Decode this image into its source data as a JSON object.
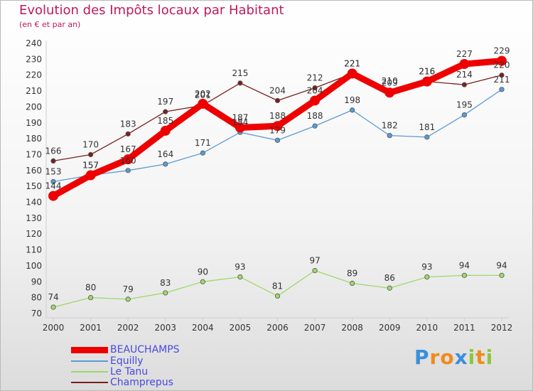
{
  "title": "Evolution des Impôts locaux par Habitant",
  "subtitle": "(en € et par an)",
  "logo": {
    "text": "Proxiti",
    "letters": [
      "P",
      "r",
      "o",
      "x",
      "i",
      "t",
      "i"
    ],
    "colors": [
      "#3a8fd9",
      "#f08a1c",
      "#f08a1c",
      "#3a8fd9",
      "#8cc63f",
      "#f08a1c",
      "#8cc63f"
    ]
  },
  "chart_data": {
    "type": "line",
    "title": "Evolution des Impôts locaux par Habitant",
    "subtitle": "(en € et par an)",
    "xlabel": "",
    "ylabel": "",
    "x": [
      "2000",
      "2001",
      "2002",
      "2003",
      "2004",
      "2005",
      "2006",
      "2007",
      "2008",
      "2009",
      "2010",
      "2011",
      "2012"
    ],
    "ylim": [
      70,
      240
    ],
    "yticks": [
      70,
      80,
      90,
      100,
      110,
      120,
      130,
      140,
      150,
      160,
      170,
      180,
      190,
      200,
      210,
      220,
      230,
      240
    ],
    "grid": false,
    "legend_position": "bottom-left",
    "series": [
      {
        "name": "BEAUCHAMPS",
        "color": "#ee0000",
        "values": [
          144,
          157,
          167,
          185,
          202,
          187,
          188,
          204,
          221,
          209,
          216,
          227,
          229
        ],
        "labels": [
          "144",
          "157",
          "167",
          "185",
          "202",
          "187",
          "188",
          "204",
          "221",
          "209",
          "216",
          "227",
          "229"
        ]
      },
      {
        "name": "Equilly",
        "color": "#5b9bd5",
        "values": [
          153,
          157,
          160,
          164,
          171,
          184,
          179,
          188,
          198,
          182,
          181,
          195,
          211
        ],
        "labels": [
          "153",
          "157",
          "160",
          "164",
          "171",
          "184",
          "179",
          "188",
          "198",
          "182",
          "181",
          "195",
          "211"
        ]
      },
      {
        "name": "Le Tanu",
        "color": "#9ed86a",
        "values": [
          74,
          80,
          79,
          83,
          90,
          93,
          81,
          97,
          89,
          86,
          93,
          94,
          94
        ],
        "labels": [
          "74",
          "80",
          "79",
          "83",
          "90",
          "93",
          "81",
          "97",
          "89",
          "86",
          "93",
          "94",
          "94"
        ]
      },
      {
        "name": "Champrepus",
        "color": "#7b1f1f",
        "values": [
          166,
          170,
          183,
          197,
          201,
          215,
          204,
          212,
          221,
          210,
          216,
          214,
          220
        ],
        "labels": [
          "166",
          "170",
          "183",
          "197",
          "201",
          "215",
          "204",
          "212",
          "221",
          "210",
          "216",
          "214",
          "220"
        ]
      }
    ]
  }
}
